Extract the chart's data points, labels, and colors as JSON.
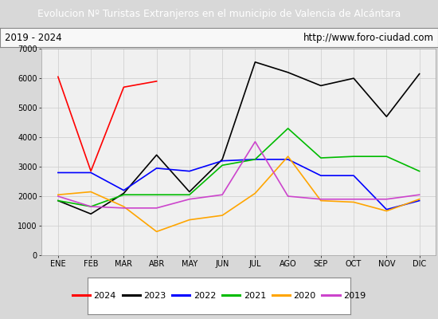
{
  "title": "Evolucion Nº Turistas Extranjeros en el municipio de Valencia de Alcántara",
  "subtitle_left": "2019 - 2024",
  "subtitle_right": "http://www.foro-ciudad.com",
  "title_bg_color": "#4472c4",
  "title_text_color": "#ffffff",
  "months": [
    "ENE",
    "FEB",
    "MAR",
    "ABR",
    "MAY",
    "JUN",
    "JUL",
    "AGO",
    "SEP",
    "OCT",
    "NOV",
    "DIC"
  ],
  "ylim": [
    0,
    7000
  ],
  "yticks": [
    0,
    1000,
    2000,
    3000,
    4000,
    5000,
    6000,
    7000
  ],
  "series": {
    "2024": {
      "color": "#ff0000",
      "values": [
        6050,
        2850,
        5700,
        5900,
        null,
        null,
        null,
        null,
        null,
        null,
        null,
        null
      ]
    },
    "2023": {
      "color": "#000000",
      "values": [
        1850,
        1400,
        2100,
        3400,
        2150,
        3250,
        6550,
        6200,
        5750,
        6000,
        4700,
        6150
      ]
    },
    "2022": {
      "color": "#0000ff",
      "values": [
        2800,
        2800,
        2200,
        2950,
        2850,
        3200,
        3250,
        3250,
        2700,
        2700,
        1550,
        1850
      ]
    },
    "2021": {
      "color": "#00bb00",
      "values": [
        1850,
        1650,
        2050,
        2050,
        2050,
        3050,
        3250,
        4300,
        3300,
        3350,
        3350,
        2850
      ]
    },
    "2020": {
      "color": "#ffa500",
      "values": [
        2050,
        2150,
        1650,
        800,
        1200,
        1350,
        2100,
        3350,
        1850,
        1800,
        1500,
        1900
      ]
    },
    "2019": {
      "color": "#cc44cc",
      "values": [
        2000,
        1650,
        1600,
        1600,
        1900,
        2050,
        3850,
        2000,
        1900,
        1900,
        1900,
        2050
      ]
    }
  },
  "fig_bg_color": "#d8d8d8",
  "plot_bg_color": "#f0f0f0",
  "grid_color": "#cccccc",
  "legend_order": [
    "2024",
    "2023",
    "2022",
    "2021",
    "2020",
    "2019"
  ]
}
